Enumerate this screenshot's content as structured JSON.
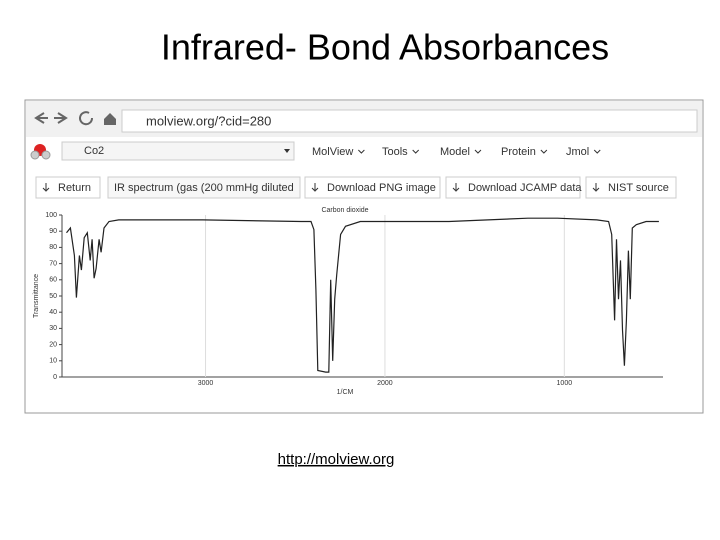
{
  "slide": {
    "title": "Infrared- Bond Absorbances",
    "link": "http://molview.org"
  },
  "browser": {
    "url": "molview.org/?cid=280",
    "search": "Co2",
    "menu": [
      "MolView",
      "Tools",
      "Model",
      "Protein",
      "Jmol"
    ],
    "buttons": [
      "Return",
      "IR spectrum (gas (200 mmHg diluted",
      "Download PNG image",
      "Download JCAMP data",
      "NIST source"
    ]
  },
  "chart_data": {
    "type": "line",
    "title": "Carbon dioxide",
    "xlabel": "1/CM",
    "ylabel": "Transmittance",
    "xlim": [
      3800,
      450
    ],
    "ylim": [
      0,
      100
    ],
    "xticks": [
      3000,
      2000,
      1000
    ],
    "yticks": [
      0,
      10,
      20,
      30,
      40,
      50,
      60,
      70,
      80,
      90,
      100
    ],
    "series": [
      {
        "color": "#222222",
        "x": [
          3775,
          3753,
          3731,
          3720,
          3703,
          3692,
          3676,
          3659,
          3643,
          3632,
          3621,
          3610,
          3593,
          3582,
          3566,
          3538,
          3484,
          3016,
          2467,
          2412,
          2396,
          2385,
          2374,
          2330,
          2313,
          2302,
          2291,
          2280,
          2269,
          2247,
          2220,
          2137,
          1643,
          1203,
          1038,
          819,
          753,
          736,
          720,
          709,
          698,
          687,
          676,
          665,
          654,
          643,
          632,
          621,
          599,
          544,
          473
        ],
        "values": [
          89,
          92,
          75,
          49,
          75,
          66,
          86,
          89,
          72,
          85,
          61,
          67,
          85,
          77,
          92,
          96,
          97,
          97,
          96,
          96,
          91,
          54,
          4,
          3,
          3,
          60,
          10,
          48,
          63,
          88,
          93,
          96,
          96,
          98,
          98,
          97,
          96,
          88,
          35,
          85,
          48,
          72,
          29,
          7,
          35,
          78,
          48,
          92,
          94,
          96,
          96
        ]
      }
    ]
  }
}
